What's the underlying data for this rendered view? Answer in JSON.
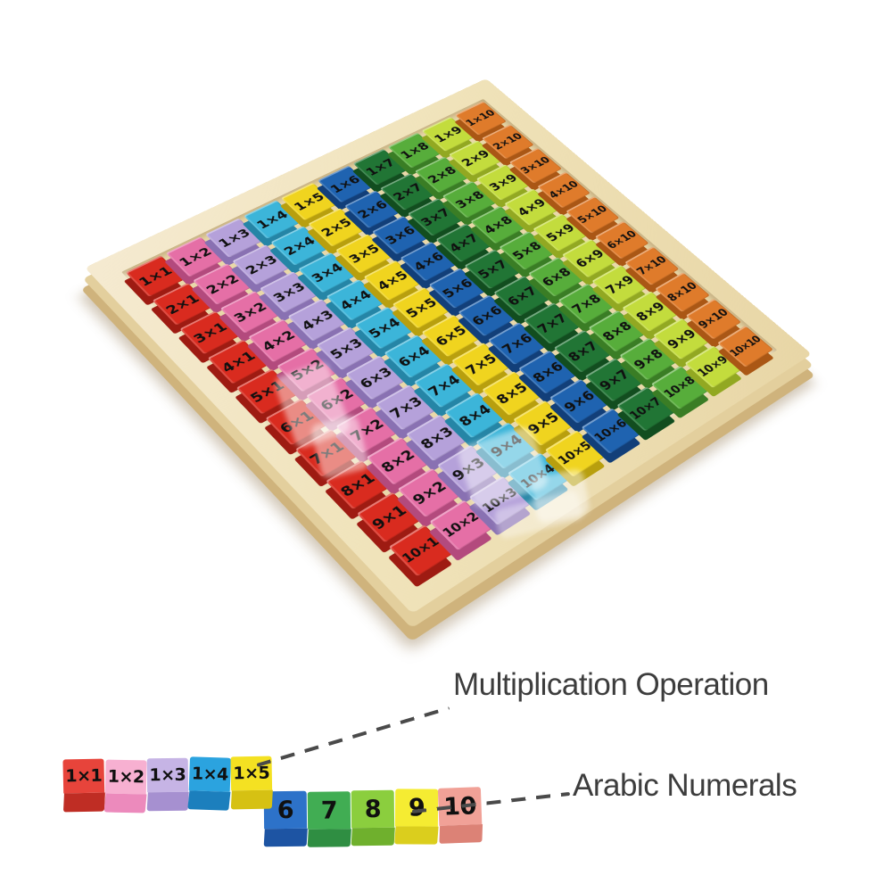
{
  "board": {
    "rows": [
      [
        "1×1",
        "1×2",
        "1×3",
        "1×4",
        "1×5",
        "1×6",
        "1×7",
        "1×8",
        "1×9",
        "1×10"
      ],
      [
        "2×1",
        "2×2",
        "2×3",
        "2×4",
        "2×5",
        "2×6",
        "2×7",
        "2×8",
        "2×9",
        "2×10"
      ],
      [
        "3×1",
        "3×2",
        "3×3",
        "3×4",
        "3×5",
        "3×6",
        "3×7",
        "3×8",
        "3×9",
        "3×10"
      ],
      [
        "4×1",
        "4×2",
        "4×3",
        "4×4",
        "4×5",
        "4×6",
        "4×7",
        "4×8",
        "4×9",
        "4×10"
      ],
      [
        "5×1",
        "5×2",
        "5×3",
        "5×4",
        "5×5",
        "5×6",
        "5×7",
        "5×8",
        "5×9",
        "5×10"
      ],
      [
        "6×1",
        "6×2",
        "6×3",
        "6×4",
        "6×5",
        "6×6",
        "6×7",
        "6×8",
        "6×9",
        "6×10"
      ],
      [
        "7×1",
        "7×2",
        "7×3",
        "7×4",
        "7×5",
        "7×6",
        "7×7",
        "7×8",
        "7×9",
        "7×10"
      ],
      [
        "8×1",
        "8×2",
        "8×3",
        "8×4",
        "8×5",
        "8×6",
        "8×7",
        "8×8",
        "8×9",
        "8×10"
      ],
      [
        "9×1",
        "9×2",
        "9×3",
        "9×4",
        "9×5",
        "9×6",
        "9×7",
        "9×8",
        "9×9",
        "9×10"
      ],
      [
        "10×1",
        "10×2",
        "10×3",
        "10×4",
        "10×5",
        "10×6",
        "10×7",
        "10×8",
        "10×9",
        "10×10"
      ]
    ],
    "column_colors": [
      {
        "top": "#d92b1f",
        "side": "#9e1b12"
      },
      {
        "top": "#e56fa6",
        "side": "#b34a7d"
      },
      {
        "top": "#b5a1da",
        "side": "#8971b2"
      },
      {
        "top": "#3cb5d9",
        "side": "#2585a6"
      },
      {
        "top": "#f0d41f",
        "side": "#b89f0e"
      },
      {
        "top": "#1f63b0",
        "side": "#123f79"
      },
      {
        "top": "#217535",
        "side": "#124d1f"
      },
      {
        "top": "#57ad3b",
        "side": "#3a7d25"
      },
      {
        "top": "#c3dc3d",
        "side": "#92a822"
      },
      {
        "top": "#df7b2b",
        "side": "#aa5715"
      }
    ]
  },
  "annotations": {
    "multiplication": "Multiplication Operation",
    "numerals": "Arabic Numerals"
  },
  "legend": {
    "operation_blocks": [
      {
        "label": "1×1",
        "top": "#e7443b",
        "front": "#bf2d24"
      },
      {
        "label": "1×2",
        "top": "#f7b0d1",
        "front": "#ec8abc"
      },
      {
        "label": "1×3",
        "top": "#c6b4e5",
        "front": "#a690d0"
      },
      {
        "label": "1×4",
        "top": "#2ba3df",
        "front": "#1c7fbd"
      },
      {
        "label": "1×5",
        "top": "#f4e122",
        "front": "#d6c113"
      }
    ],
    "numeral_blocks": [
      {
        "label": "6",
        "top": "#2d72c9",
        "front": "#1d54a3"
      },
      {
        "label": "7",
        "top": "#41ad53",
        "front": "#2f8e42"
      },
      {
        "label": "8",
        "top": "#8bce3e",
        "front": "#6fb02d"
      },
      {
        "label": "9",
        "top": "#f5ec32",
        "front": "#dbce1d"
      },
      {
        "label": "10",
        "top": "#f1a197",
        "front": "#dc8276"
      }
    ]
  }
}
